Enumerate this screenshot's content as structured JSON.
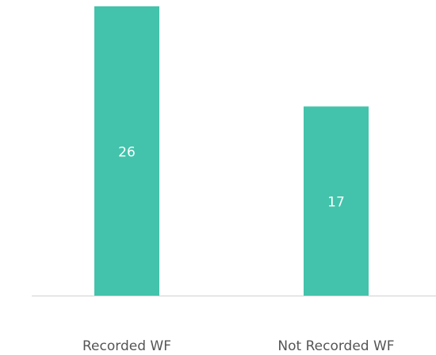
{
  "chart_data": {
    "type": "bar",
    "categories": [
      "Recorded WF",
      "Not Recorded WF"
    ],
    "values": [
      26,
      17
    ],
    "color": "#43c3ab"
  }
}
